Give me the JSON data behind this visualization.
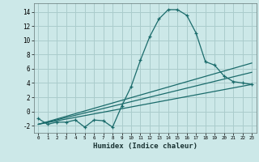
{
  "xlabel": "Humidex (Indice chaleur)",
  "bg_color": "#cce8e8",
  "grid_color": "#aacccc",
  "line_color": "#1a6b6b",
  "xlim": [
    -0.5,
    23.5
  ],
  "ylim": [
    -3.0,
    15.2
  ],
  "x_ticks": [
    0,
    1,
    2,
    3,
    4,
    5,
    6,
    7,
    8,
    9,
    10,
    11,
    12,
    13,
    14,
    15,
    16,
    17,
    18,
    19,
    20,
    21,
    22,
    23
  ],
  "y_ticks": [
    -2,
    0,
    2,
    4,
    6,
    8,
    10,
    12,
    14
  ],
  "main_x": [
    0,
    1,
    2,
    3,
    4,
    5,
    6,
    7,
    8,
    9,
    10,
    11,
    12,
    13,
    14,
    15,
    16,
    17,
    18,
    19,
    20,
    21,
    22,
    23
  ],
  "main_y": [
    -1.0,
    -1.8,
    -1.5,
    -1.5,
    -1.2,
    -2.2,
    -1.2,
    -1.3,
    -2.2,
    0.8,
    3.5,
    7.2,
    10.5,
    13.0,
    14.3,
    14.3,
    13.5,
    11.0,
    7.0,
    6.5,
    5.0,
    4.2,
    4.0,
    3.8
  ],
  "trend1_x": [
    0,
    23
  ],
  "trend1_y": [
    -1.8,
    3.8
  ],
  "trend2_x": [
    0,
    23
  ],
  "trend2_y": [
    -1.8,
    5.5
  ],
  "trend3_x": [
    0,
    23
  ],
  "trend3_y": [
    -1.8,
    6.8
  ]
}
